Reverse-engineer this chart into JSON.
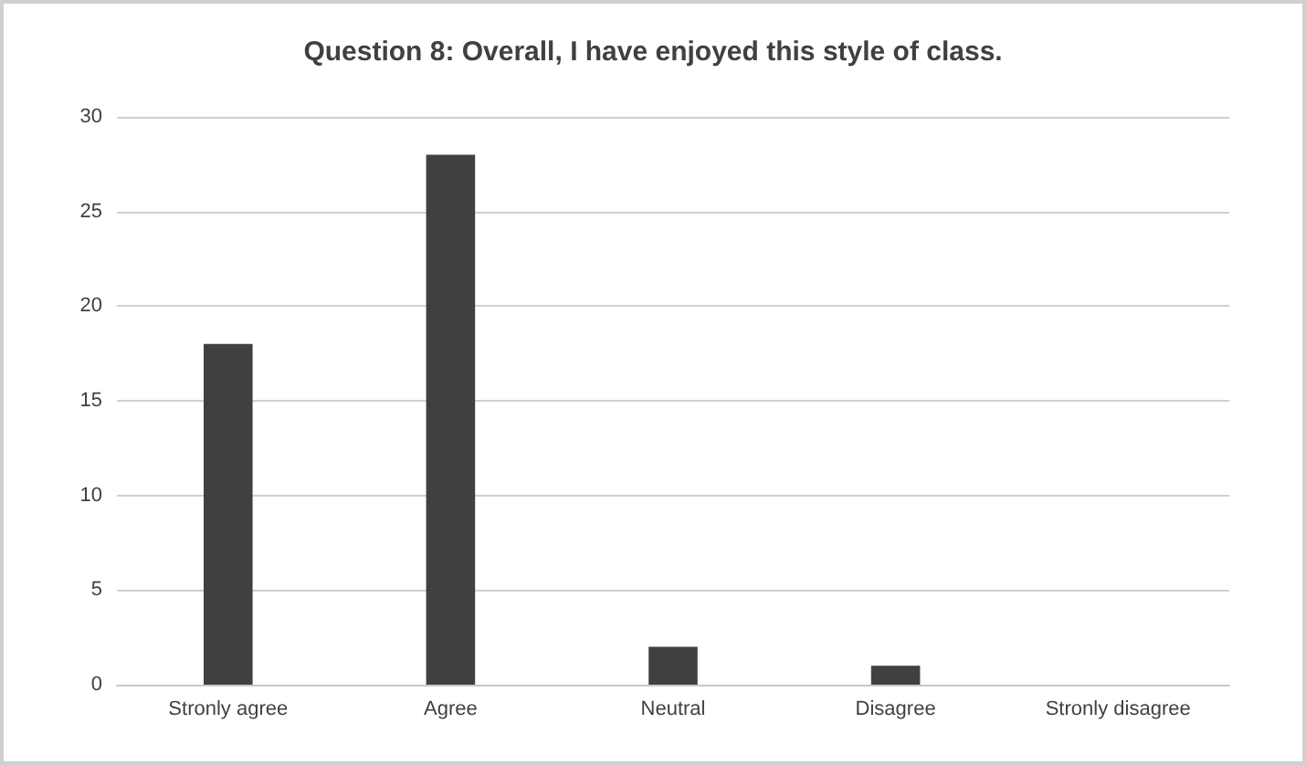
{
  "chart_data": {
    "type": "bar",
    "title": "Question 8: Overall, I have enjoyed this style of class.",
    "categories": [
      "Stronly agree",
      "Agree",
      "Neutral",
      "Disagree",
      "Stronly disagree"
    ],
    "values": [
      18,
      28,
      2,
      1,
      0
    ],
    "color": "#404040",
    "ylim": [
      0,
      30
    ],
    "yticks": [
      0,
      5,
      10,
      15,
      20,
      25,
      30
    ],
    "grid": "y"
  }
}
